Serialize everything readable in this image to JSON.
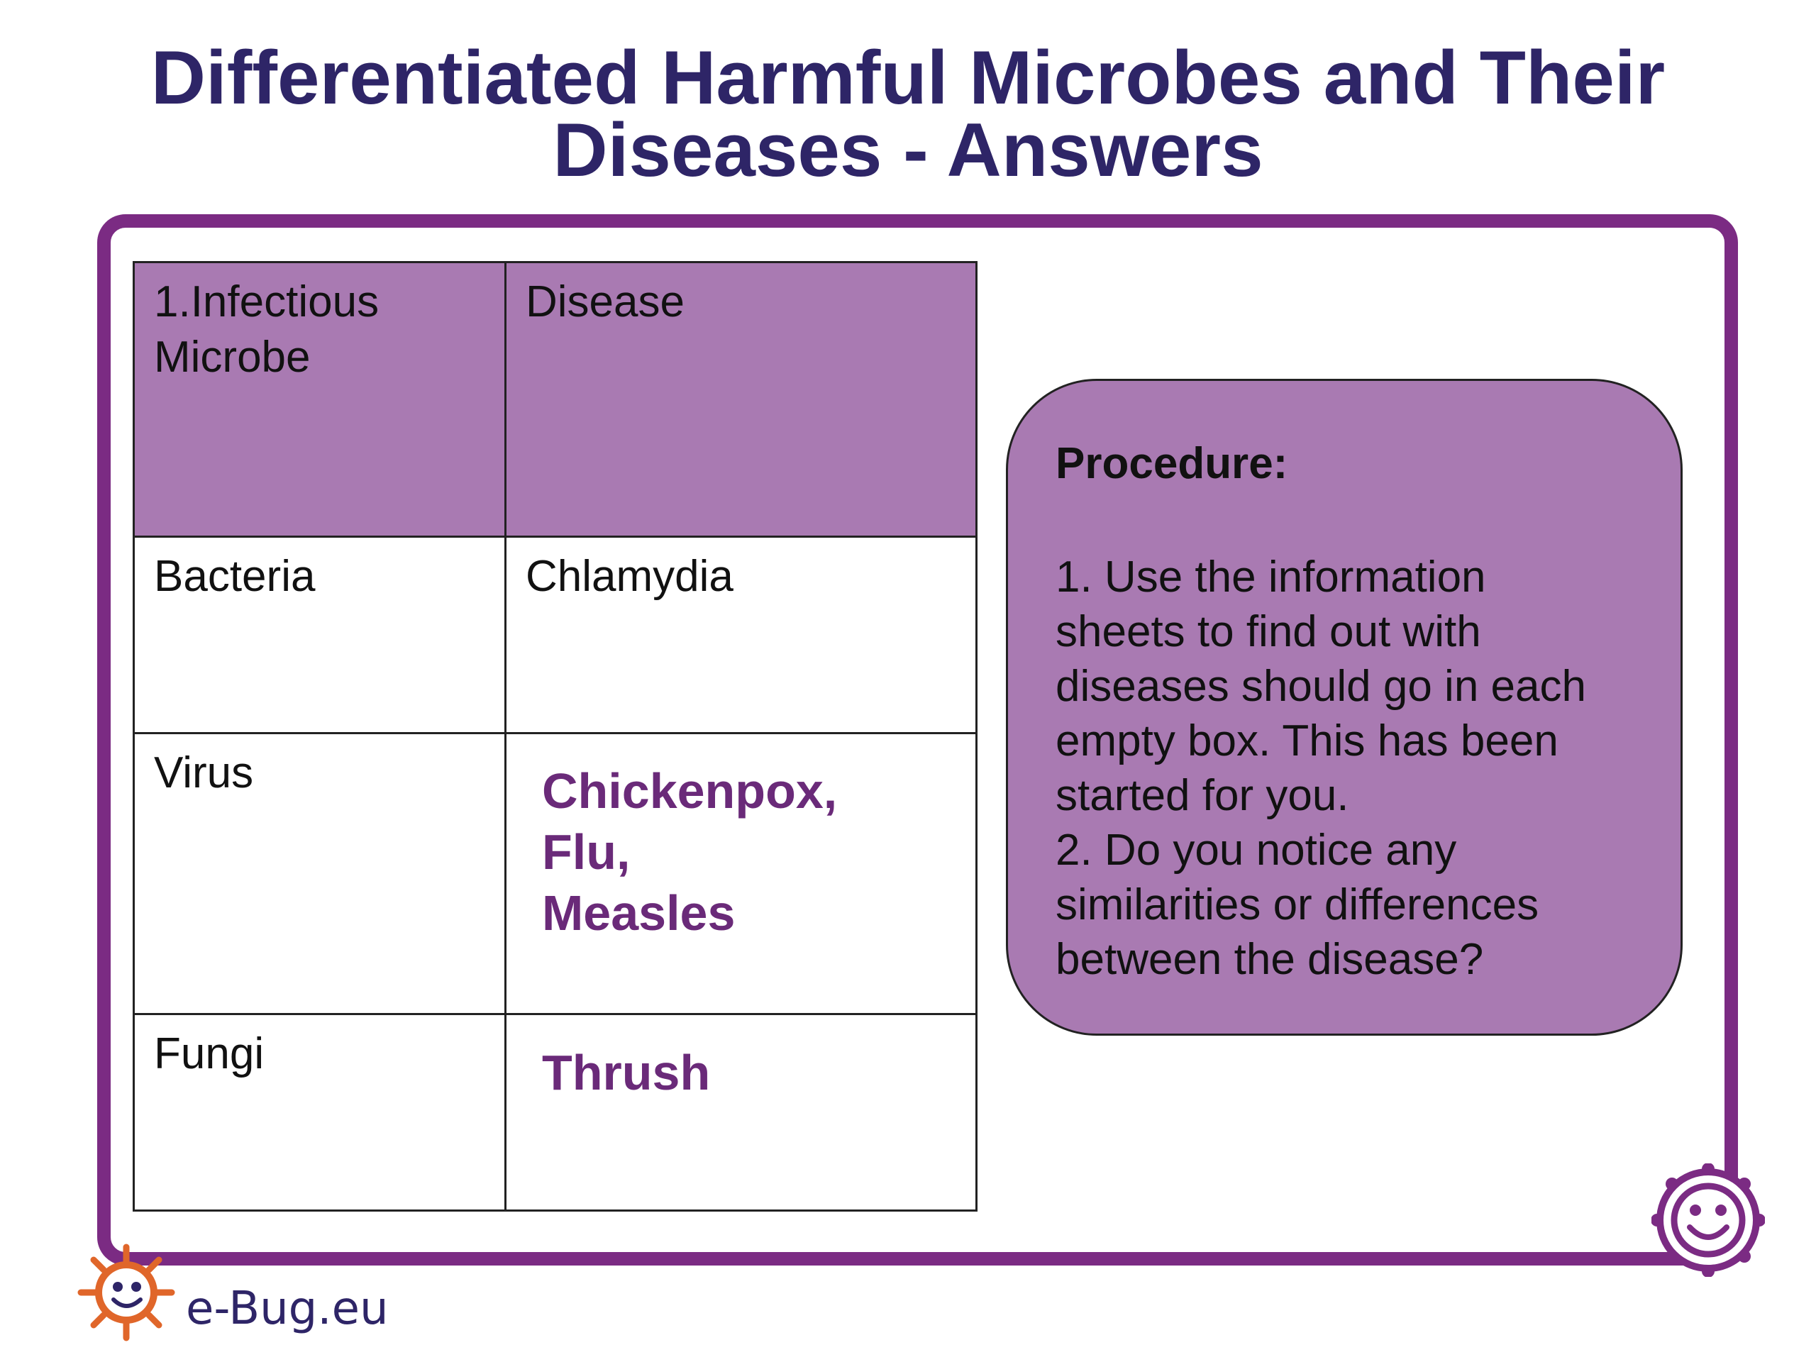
{
  "title": {
    "line1": "Differentiated Harmful Microbes and Their",
    "line2": "Diseases - Answers"
  },
  "table": {
    "headers": [
      "1.Infectious\nMicrobe",
      "Disease"
    ],
    "rows": [
      {
        "microbe": "Bacteria",
        "disease": "Chlamydia"
      },
      {
        "microbe": "Virus",
        "answer": [
          "Chickenpox,",
          "Flu,",
          "Measles"
        ]
      },
      {
        "microbe": "Fungi",
        "answer": [
          "Thrush"
        ]
      }
    ]
  },
  "procedure": {
    "title": "Procedure:",
    "body": "1. Use the information\nsheets to find out with\ndiseases should go in each\nempty box. This has been\nstarted for you.\n2. Do you notice any\nsimilarities or differences\nbetween the disease?"
  },
  "footer": {
    "logo_text": "e-Bug.eu"
  },
  "colors": {
    "title": "#2e2567",
    "frame": "#7b2b83",
    "header_fill": "#a97ab2",
    "answer_text": "#6a2a79",
    "logo_orange": "#e0662a"
  },
  "icons": [
    "ebug-logo-icon",
    "ebug-corner-icon"
  ]
}
